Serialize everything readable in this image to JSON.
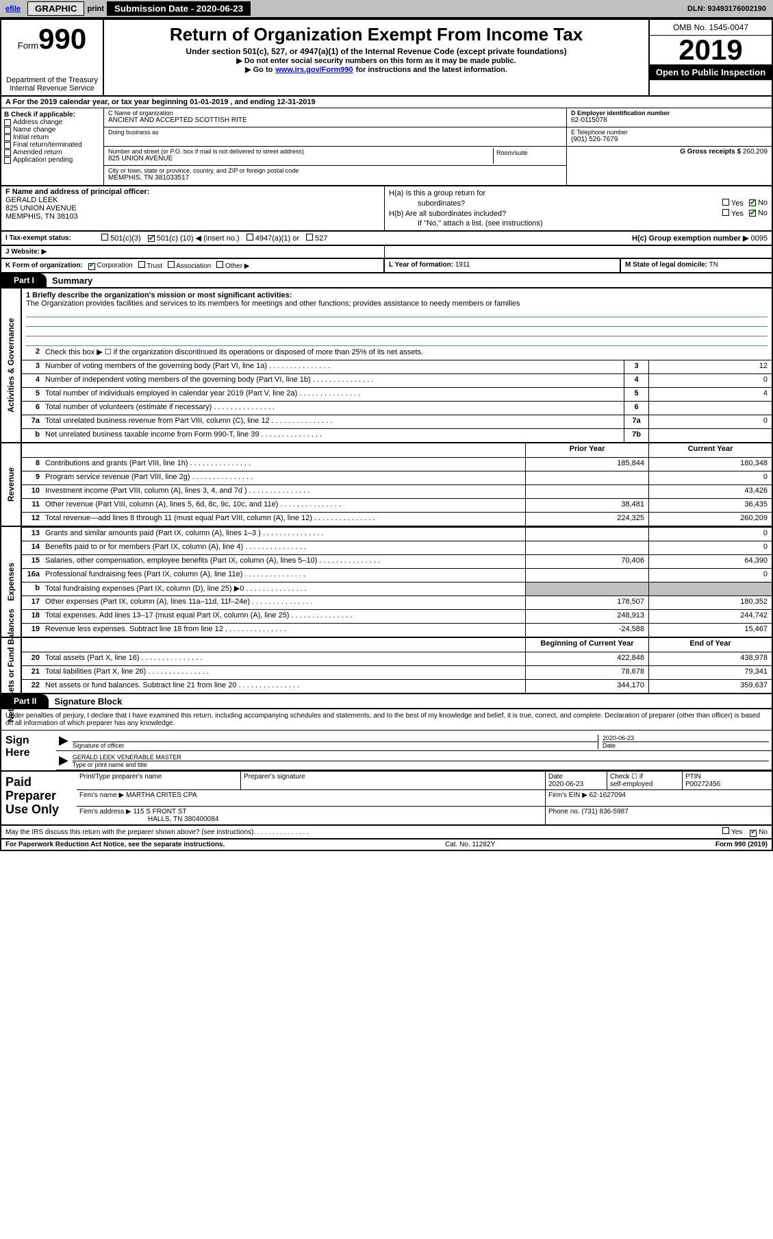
{
  "colors": {
    "toolbar_bg": "#c0c0c0",
    "black": "#000000",
    "white": "#ffffff",
    "link": "#0000ee",
    "check_green": "#1a7f1a",
    "rule_blue": "#5b7fa6",
    "shade": "#c0c0c0"
  },
  "toolbar": {
    "efile": "efile",
    "graphic": "GRAPHIC",
    "print": "print",
    "subdate_label": "Submission Date - 2020-06-23",
    "dln": "DLN: 93493176002190"
  },
  "header": {
    "form_word": "Form",
    "form_number": "990",
    "dept1": "Department of the Treasury",
    "dept2": "Internal Revenue Service",
    "title": "Return of Organization Exempt From Income Tax",
    "subtitle": "Under section 501(c), 527, or 4947(a)(1) of the Internal Revenue Code (except private foundations)",
    "note1": "▶ Do not enter social security numbers on this form as it may be made public.",
    "note2_pre": "▶ Go to ",
    "note2_link": "www.irs.gov/Form990",
    "note2_post": " for instructions and the latest information.",
    "omb": "OMB No. 1545-0047",
    "year": "2019",
    "open_public": "Open to Public Inspection"
  },
  "period": {
    "line_a": "A For the 2019 calendar year, or tax year beginning 01-01-2019   , and ending 12-31-2019"
  },
  "boxB": {
    "label": "B Check if applicable:",
    "items": [
      "Address change",
      "Name change",
      "Initial return",
      "Final return/terminated",
      "Amended return",
      "Application pending"
    ]
  },
  "boxC": {
    "name_label": "C Name of organization",
    "name": "ANCIENT AND ACCEPTED SCOTTISH RITE",
    "dba_label": "Doing business as",
    "dba": "",
    "addr_label": "Number and street (or P.O. box if mail is not delivered to street address)",
    "room_label": "Room/suite",
    "addr": "825 UNION AVENUE",
    "city_label": "City or town, state or province, country, and ZIP or foreign postal code",
    "city": "MEMPHIS, TN  381033517"
  },
  "boxD": {
    "label": "D Employer identification number",
    "value": "62-0115078"
  },
  "boxE": {
    "label": "E Telephone number",
    "value": "(901) 526-7679"
  },
  "boxG": {
    "label": "G Gross receipts $",
    "value": "260,209"
  },
  "boxF": {
    "label": "F  Name and address of principal officer:",
    "name": "GERALD LEEK",
    "addr1": "825 UNION AVENUE",
    "addr2": "MEMPHIS, TN  38103"
  },
  "boxH": {
    "ha_label": "H(a)  Is this a group return for",
    "ha_sub": "subordinates?",
    "hb_label": "H(b)  Are all subordinates included?",
    "h_note": "If \"No,\" attach a list. (see instructions)",
    "hc_label": "H(c)  Group exemption number ▶",
    "hc_value": "0095",
    "ha_yes": "Yes",
    "ha_no": "No",
    "hb_yes": "Yes",
    "hb_no": "No"
  },
  "boxI": {
    "label": "I   Tax-exempt status:",
    "opt1": "501(c)(3)",
    "opt2_pre": "501(c) (",
    "opt2_num": "10",
    "opt2_post": ") ◀ (insert no.)",
    "opt3": "4947(a)(1) or",
    "opt4": "527"
  },
  "boxJ": {
    "label": "J   Website: ▶",
    "value": ""
  },
  "boxK": {
    "label": "K Form of organization:",
    "opt1": "Corporation",
    "opt2": "Trust",
    "opt3": "Association",
    "opt4": "Other ▶"
  },
  "boxL": {
    "label": "L Year of formation:",
    "value": "1911"
  },
  "boxM": {
    "label": "M State of legal domicile:",
    "value": "TN"
  },
  "part1": {
    "tab": "Part I",
    "title": "Summary"
  },
  "summary": {
    "q1_label": "1   Briefly describe the organization's mission or most significant activities:",
    "q1_text": "The Organization provides facilities and services to its members for meetings and other functions; provides assistance to needy members or families",
    "q2": "Check this box ▶ ☐  if the organization discontinued its operations or disposed of more than 25% of its net assets.",
    "lines_gov": [
      {
        "n": "3",
        "t": "Number of voting members of the governing body (Part VI, line 1a)",
        "box": "3",
        "v": "12"
      },
      {
        "n": "4",
        "t": "Number of independent voting members of the governing body (Part VI, line 1b)",
        "box": "4",
        "v": "0"
      },
      {
        "n": "5",
        "t": "Total number of individuals employed in calendar year 2019 (Part V, line 2a)",
        "box": "5",
        "v": "4"
      },
      {
        "n": "6",
        "t": "Total number of volunteers (estimate if necessary)",
        "box": "6",
        "v": ""
      },
      {
        "n": "7a",
        "t": "Total unrelated business revenue from Part VIII, column (C), line 12",
        "box": "7a",
        "v": "0"
      },
      {
        "n": "b",
        "t": "Net unrelated business taxable income from Form 990-T, line 39",
        "box": "7b",
        "v": ""
      }
    ],
    "col_prior": "Prior Year",
    "col_curr": "Current Year",
    "revenue": [
      {
        "n": "8",
        "t": "Contributions and grants (Part VIII, line 1h)",
        "p": "185,844",
        "c": "180,348"
      },
      {
        "n": "9",
        "t": "Program service revenue (Part VIII, line 2g)",
        "p": "",
        "c": "0"
      },
      {
        "n": "10",
        "t": "Investment income (Part VIII, column (A), lines 3, 4, and 7d )",
        "p": "",
        "c": "43,426"
      },
      {
        "n": "11",
        "t": "Other revenue (Part VIII, column (A), lines 5, 6d, 8c, 9c, 10c, and 11e)",
        "p": "38,481",
        "c": "36,435"
      },
      {
        "n": "12",
        "t": "Total revenue—add lines 8 through 11 (must equal Part VIII, column (A), line 12)",
        "p": "224,325",
        "c": "260,209"
      }
    ],
    "expenses": [
      {
        "n": "13",
        "t": "Grants and similar amounts paid (Part IX, column (A), lines 1–3 )",
        "p": "",
        "c": "0"
      },
      {
        "n": "14",
        "t": "Benefits paid to or for members (Part IX, column (A), line 4)",
        "p": "",
        "c": "0"
      },
      {
        "n": "15",
        "t": "Salaries, other compensation, employee benefits (Part IX, column (A), lines 5–10)",
        "p": "70,406",
        "c": "64,390"
      },
      {
        "n": "16a",
        "t": "Professional fundraising fees (Part IX, column (A), line 11e)",
        "p": "",
        "c": "0"
      },
      {
        "n": "b",
        "t": "Total fundraising expenses (Part IX, column (D), line 25) ▶0",
        "p": "SHADE",
        "c": "SHADE"
      },
      {
        "n": "17",
        "t": "Other expenses (Part IX, column (A), lines 11a–11d, 11f–24e)",
        "p": "178,507",
        "c": "180,352"
      },
      {
        "n": "18",
        "t": "Total expenses. Add lines 13–17 (must equal Part IX, column (A), line 25)",
        "p": "248,913",
        "c": "244,742"
      },
      {
        "n": "19",
        "t": "Revenue less expenses. Subtract line 18 from line 12",
        "p": "-24,588",
        "c": "15,467"
      }
    ],
    "col_begin": "Beginning of Current Year",
    "col_end": "End of Year",
    "netassets": [
      {
        "n": "20",
        "t": "Total assets (Part X, line 16)",
        "p": "422,848",
        "c": "438,978"
      },
      {
        "n": "21",
        "t": "Total liabilities (Part X, line 26)",
        "p": "78,678",
        "c": "79,341"
      },
      {
        "n": "22",
        "t": "Net assets or fund balances. Subtract line 21 from line 20",
        "p": "344,170",
        "c": "359,637"
      }
    ],
    "side_gov": "Activities & Governance",
    "side_rev": "Revenue",
    "side_exp": "Expenses",
    "side_net": "Net Assets or Fund Balances"
  },
  "part2": {
    "tab": "Part II",
    "title": "Signature Block"
  },
  "sig": {
    "decl": "Under penalties of perjury, I declare that I have examined this return, including accompanying schedules and statements, and to the best of my knowledge and belief, it is true, correct, and complete. Declaration of preparer (other than officer) is based on all information of which preparer has any knowledge.",
    "sign_here": "Sign Here",
    "sig_officer_label": "Signature of officer",
    "date_label": "Date",
    "date_val": "2020-06-23",
    "name_title": "GERALD LEEK  VENERABLE MASTER",
    "name_title_label": "Type or print name and title"
  },
  "paid": {
    "label": "Paid Preparer Use Only",
    "h1": "Print/Type preparer's name",
    "h2": "Preparer's signature",
    "h3": "Date",
    "h3v": "2020-06-23",
    "h4a": "Check ☐ if",
    "h4b": "self-employed",
    "h5": "PTIN",
    "h5v": "P00272456",
    "firm_name_label": "Firm's name    ▶",
    "firm_name": "MARTHA CRITES CPA",
    "firm_ein_label": "Firm's EIN ▶",
    "firm_ein": "62-1627094",
    "firm_addr_label": "Firm's address ▶",
    "firm_addr1": "115 S FRONT ST",
    "firm_addr2": "HALLS, TN  380400084",
    "phone_label": "Phone no.",
    "phone": "(731) 836-5987"
  },
  "footer": {
    "discuss": "May the IRS discuss this return with the preparer shown above? (see instructions)",
    "yes": "Yes",
    "no": "No",
    "paperwork": "For Paperwork Reduction Act Notice, see the separate instructions.",
    "cat": "Cat. No. 11282Y",
    "form": "Form 990 (2019)"
  }
}
